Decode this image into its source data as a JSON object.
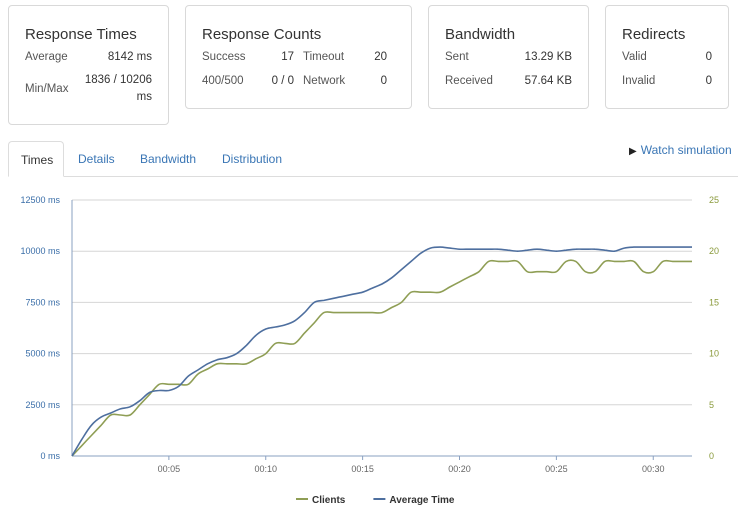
{
  "cards": {
    "response_times": {
      "title": "Response Times",
      "average_label": "Average",
      "average_value": "8142 ms",
      "minmax_label": "Min/Max",
      "minmax_value_line1": "1836 / 10206",
      "minmax_value_line2": "ms"
    },
    "response_counts": {
      "title": "Response Counts",
      "success_label": "Success",
      "success_value": "17",
      "timeout_label": "Timeout",
      "timeout_value": "20",
      "code_label": "400/500",
      "code_value": "0 / 0",
      "network_label": "Network",
      "network_value": "0"
    },
    "bandwidth": {
      "title": "Bandwidth",
      "sent_label": "Sent",
      "sent_value": "13.29 KB",
      "received_label": "Received",
      "received_value": "57.64 KB"
    },
    "redirects": {
      "title": "Redirects",
      "valid_label": "Valid",
      "valid_value": "0",
      "invalid_label": "Invalid",
      "invalid_value": "0"
    }
  },
  "tabs": [
    {
      "label": "Times",
      "active": true
    },
    {
      "label": "Details",
      "active": false
    },
    {
      "label": "Bandwidth",
      "active": false
    },
    {
      "label": "Distribution",
      "active": false
    }
  ],
  "watch_simulation_label": "Watch simulation",
  "chart_data": {
    "type": "line",
    "x_unit": "seconds",
    "xlim": [
      0,
      32
    ],
    "x_ticks": [
      5,
      10,
      15,
      20,
      25,
      30
    ],
    "x_tick_labels": [
      "00:05",
      "00:10",
      "00:15",
      "00:20",
      "00:25",
      "00:30"
    ],
    "left_axis": {
      "ylim": [
        0,
        12500
      ],
      "ticks": [
        0,
        2500,
        5000,
        7500,
        10000,
        12500
      ],
      "tick_labels": [
        "0 ms",
        "2500 ms",
        "5000 ms",
        "7500 ms",
        "10000 ms",
        "12500 ms"
      ]
    },
    "right_axis": {
      "ylim": [
        0,
        25
      ],
      "ticks": [
        0,
        5,
        10,
        15,
        20,
        25
      ],
      "tick_labels": [
        "0",
        "5",
        "10",
        "15",
        "20",
        "25"
      ]
    },
    "series": [
      {
        "name": "Clients",
        "axis": "right",
        "color": "#8f9e55",
        "x": [
          0,
          0.5,
          1,
          1.5,
          2,
          2.5,
          3,
          3.5,
          4,
          4.5,
          5,
          5.5,
          6,
          6.5,
          7,
          7.5,
          8,
          8.5,
          9,
          9.5,
          10,
          10.5,
          11,
          11.5,
          12,
          12.5,
          13,
          13.5,
          14,
          14.5,
          15,
          15.5,
          16,
          16.5,
          17,
          17.5,
          18,
          18.5,
          19,
          19.5,
          20,
          20.5,
          21,
          21.5,
          22,
          22.5,
          23,
          23.5,
          24,
          24.5,
          25,
          25.5,
          26,
          26.5,
          27,
          27.5,
          28,
          28.5,
          29,
          29.5,
          30,
          30.5,
          31,
          31.5,
          32
        ],
        "values": [
          0,
          1,
          2,
          3,
          4,
          4,
          4,
          5,
          6,
          7,
          7,
          7,
          7,
          8,
          8.5,
          9,
          9,
          9,
          9,
          9.5,
          10,
          11,
          11,
          11,
          12,
          13,
          14,
          14,
          14,
          14,
          14,
          14,
          14,
          14.5,
          15,
          16,
          16,
          16,
          16,
          16.5,
          17,
          17.5,
          18,
          19,
          19,
          19,
          19,
          18,
          18,
          18,
          18,
          19,
          19,
          18,
          18,
          19,
          19,
          19,
          19,
          18,
          18,
          19,
          19,
          19,
          19
        ]
      },
      {
        "name": "Average Time",
        "axis": "left",
        "color": "#4e6f9f",
        "x": [
          0,
          0.5,
          1,
          1.5,
          2,
          2.5,
          3,
          3.5,
          4,
          4.5,
          5,
          5.5,
          6,
          6.5,
          7,
          7.5,
          8,
          8.5,
          9,
          9.5,
          10,
          10.5,
          11,
          11.5,
          12,
          12.5,
          13,
          13.5,
          14,
          14.5,
          15,
          15.5,
          16,
          16.5,
          17,
          17.5,
          18,
          18.5,
          19,
          19.5,
          20,
          20.5,
          21,
          21.5,
          22,
          22.5,
          23,
          23.5,
          24,
          24.5,
          25,
          25.5,
          26,
          26.5,
          27,
          27.5,
          28,
          28.5,
          29,
          29.5,
          30,
          30.5,
          31,
          31.5,
          32
        ],
        "values": [
          0,
          800,
          1500,
          1900,
          2100,
          2300,
          2400,
          2700,
          3100,
          3200,
          3200,
          3400,
          3900,
          4200,
          4500,
          4700,
          4800,
          5000,
          5400,
          5900,
          6200,
          6300,
          6400,
          6600,
          7000,
          7500,
          7600,
          7700,
          7800,
          7900,
          8000,
          8200,
          8400,
          8700,
          9100,
          9500,
          9900,
          10150,
          10200,
          10150,
          10100,
          10100,
          10100,
          10100,
          10100,
          10050,
          10000,
          10050,
          10100,
          10050,
          10000,
          10050,
          10100,
          10100,
          10100,
          10050,
          10000,
          10150,
          10200,
          10200,
          10200,
          10200,
          10200,
          10200,
          10200
        ]
      }
    ],
    "legend_position": "bottom"
  }
}
